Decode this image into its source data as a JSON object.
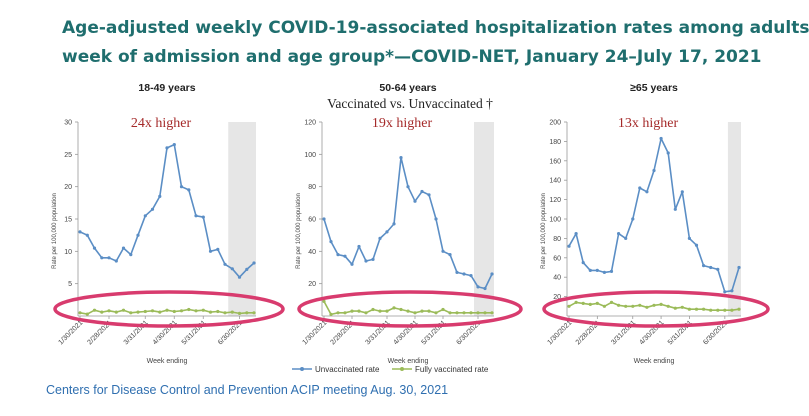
{
  "header": {
    "title_line1": "Age-adjusted weekly COVID-19-associated hospitalization rates among adults by",
    "title_line2": "week of admission and age group*—COVID-NET, January 24–July 17, 2021",
    "subtitle": "Vaccinated vs. Unvaccinated †"
  },
  "source": "Centers for Disease Control and Prevention ACIP meeting Aug. 30, 2021",
  "colors": {
    "title": "#1f6e6e",
    "unvaccinated": "#5b8ec5",
    "vaccinated": "#9bbb59",
    "annotation": "#a52a2a",
    "highlight": "#d83b6e",
    "shading": "#e6e6e6",
    "source": "#2f6fb0"
  },
  "chart_data": [
    {
      "type": "line",
      "title": "18-49 years",
      "annotation": "24x higher",
      "ylabel": "Rate per 100,000 population",
      "xlabel": "Week ending",
      "ylim": [
        0,
        30
      ],
      "yticks": [
        5,
        10,
        15,
        20,
        25,
        30
      ],
      "xtick_labels": [
        "1/30/2021",
        "2/28/2021",
        "3/31/2021",
        "4/30/2021",
        "5/31/2021",
        "6/30/2021"
      ],
      "xtick_index": [
        0,
        4,
        9,
        13,
        17,
        22
      ],
      "shaded_from_index": 21,
      "series": [
        {
          "name": "Unvaccinated rate",
          "values": [
            13,
            12.5,
            10.5,
            9,
            9,
            8.5,
            10.5,
            9.5,
            12.5,
            15.5,
            16.5,
            18.5,
            26,
            26.5,
            20,
            19.5,
            15.5,
            15.3,
            10,
            10.3,
            8,
            7.3,
            6,
            7.2,
            8.2
          ]
        },
        {
          "name": "Fully vaccinated rate",
          "values": [
            0.5,
            0.3,
            0.9,
            0.6,
            0.8,
            0.6,
            0.9,
            0.5,
            0.6,
            0.7,
            0.8,
            0.6,
            0.9,
            0.7,
            0.8,
            1.0,
            0.8,
            0.9,
            0.6,
            0.7,
            0.5,
            0.6,
            0.4,
            0.5,
            0.5
          ]
        }
      ]
    },
    {
      "type": "line",
      "title": "50-64 years",
      "annotation": "19x higher",
      "ylabel": "Rate per 100,000 population",
      "xlabel": "Week ending",
      "ylim": [
        0,
        120
      ],
      "yticks": [
        20,
        40,
        60,
        80,
        100,
        120
      ],
      "xtick_labels": [
        "1/30/2021",
        "2/28/2021",
        "3/31/2021",
        "4/30/2021",
        "5/31/2021",
        "6/30/2021"
      ],
      "xtick_index": [
        0,
        4,
        9,
        13,
        17,
        22
      ],
      "shaded_from_index": 22,
      "series": [
        {
          "name": "Unvaccinated rate",
          "values": [
            60,
            46,
            38,
            37,
            32,
            43,
            34,
            35,
            48,
            52,
            57,
            98,
            80,
            71,
            77,
            75,
            60,
            40,
            38,
            27,
            26,
            25,
            18,
            17,
            26
          ]
        },
        {
          "name": "Fully vaccinated rate",
          "values": [
            9,
            1,
            2,
            2,
            3,
            3,
            2,
            4,
            3,
            3,
            5,
            4,
            3,
            2,
            3,
            3,
            2,
            4,
            2,
            2,
            2,
            2,
            2,
            2,
            2
          ]
        }
      ]
    },
    {
      "type": "line",
      "title": "≥65 years",
      "annotation": "13x higher",
      "ylabel": "Rate per 100,000 population",
      "xlabel": "Week ending",
      "ylim": [
        0,
        200
      ],
      "yticks": [
        20,
        40,
        60,
        80,
        100,
        120,
        140,
        160,
        180,
        200
      ],
      "xtick_labels": [
        "1/30/2021",
        "2/28/2021",
        "3/31/2021",
        "4/30/2021",
        "5/31/2021",
        "6/30/2021"
      ],
      "xtick_index": [
        0,
        4,
        9,
        13,
        17,
        22
      ],
      "shaded_from_index": 23,
      "series": [
        {
          "name": "Unvaccinated rate",
          "values": [
            72,
            85,
            55,
            47,
            47,
            45,
            46,
            85,
            80,
            100,
            132,
            128,
            150,
            183,
            168,
            110,
            128,
            80,
            73,
            52,
            50,
            48,
            25,
            26,
            50
          ]
        },
        {
          "name": "Fully vaccinated rate",
          "values": [
            10,
            14,
            13,
            12,
            13,
            10,
            14,
            11,
            10,
            10,
            11,
            9,
            11,
            12,
            10,
            8,
            9,
            7,
            7,
            7,
            6,
            6,
            6,
            6,
            7
          ]
        }
      ]
    }
  ]
}
